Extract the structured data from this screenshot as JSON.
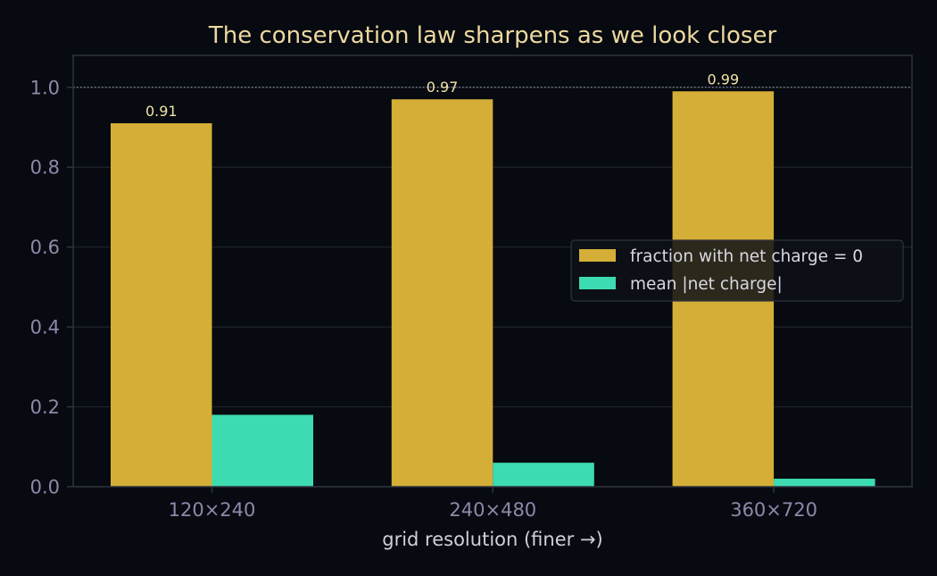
{
  "chart_data": {
    "type": "bar",
    "title": "The conservation law sharpens as we look closer",
    "xlabel": "grid resolution (finer →)",
    "ylabel": "",
    "categories": [
      "120×240",
      "240×480",
      "360×720"
    ],
    "series": [
      {
        "name": "fraction with net charge = 0",
        "values": [
          0.91,
          0.97,
          0.99
        ],
        "color": "#d4ae36",
        "data_labels": [
          "0.91",
          "0.97",
          "0.99"
        ]
      },
      {
        "name": "mean |net charge|",
        "values": [
          0.18,
          0.06,
          0.02
        ],
        "color": "#3ddbb1"
      }
    ],
    "ylim": [
      0,
      1.08
    ],
    "yticks": [
      0.0,
      0.2,
      0.4,
      0.6,
      0.8,
      1.0
    ],
    "ytick_labels": [
      "0.0",
      "0.2",
      "0.4",
      "0.6",
      "0.8",
      "1.0"
    ],
    "reference_line": {
      "y": 1.0,
      "style": "dotted"
    },
    "grid": true,
    "legend_position": "center-right"
  },
  "colors": {
    "background": "#070a10",
    "grid": "#1f242c",
    "axis": "#2e333d",
    "reference_line": "#8a8fa4"
  }
}
